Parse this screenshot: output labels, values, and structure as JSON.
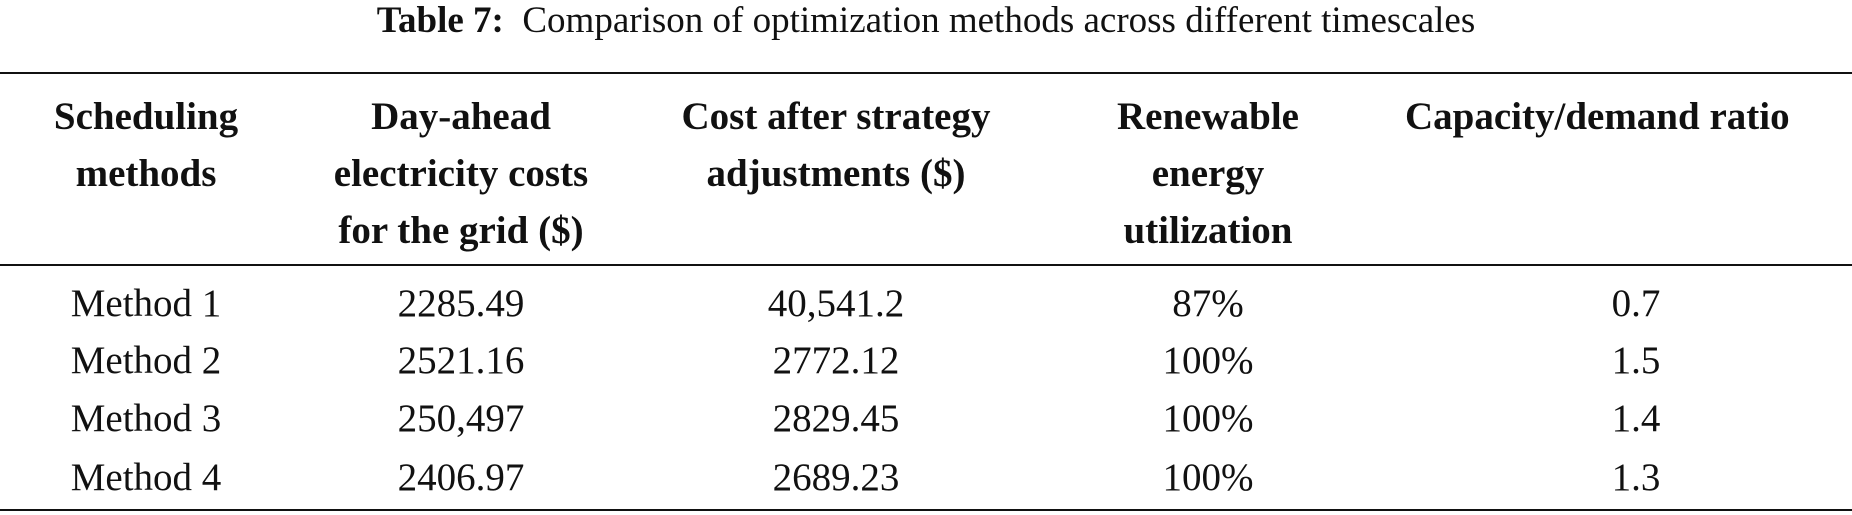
{
  "caption": {
    "label": "Table 7:",
    "text": "Comparison of optimization methods across different timescales"
  },
  "table": {
    "header": [
      "Scheduling methods",
      "Day-ahead electricity costs for the grid ($)",
      "Cost after strategy adjustments ($)",
      "Renewable energy utilization",
      "Capacity/demand ratio"
    ],
    "rows": [
      [
        "Method 1",
        "2285.49",
        "40,541.2",
        "87%",
        "0.7"
      ],
      [
        "Method 2",
        "2521.16",
        "2772.12",
        "100%",
        "1.5"
      ],
      [
        "Method 3",
        "250,497",
        "2829.45",
        "100%",
        "1.4"
      ],
      [
        "Method 4",
        "2406.97",
        "2689.23",
        "100%",
        "1.3"
      ]
    ]
  }
}
